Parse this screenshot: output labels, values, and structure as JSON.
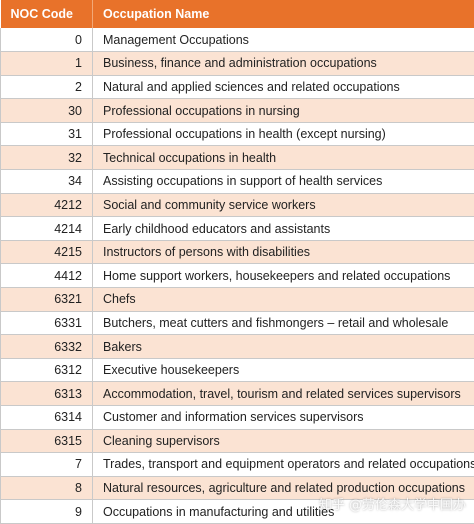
{
  "table": {
    "headers": {
      "code": "NOC Code",
      "name": "Occupation Name"
    },
    "rows": [
      {
        "code": "0",
        "name": "Management Occupations"
      },
      {
        "code": "1",
        "name": "Business, finance and administration occupations"
      },
      {
        "code": "2",
        "name": "Natural and applied sciences and related occupations"
      },
      {
        "code": "30",
        "name": "Professional occupations in nursing"
      },
      {
        "code": "31",
        "name": "Professional occupations in health (except nursing)"
      },
      {
        "code": "32",
        "name": "Technical occupations in health"
      },
      {
        "code": "34",
        "name": "Assisting occupations in support of health services"
      },
      {
        "code": "4212",
        "name": "Social and community service workers"
      },
      {
        "code": "4214",
        "name": "Early childhood educators and assistants"
      },
      {
        "code": "4215",
        "name": "Instructors of persons with disabilities"
      },
      {
        "code": "4412",
        "name": "Home support workers, housekeepers and related occupations"
      },
      {
        "code": "6321",
        "name": "Chefs"
      },
      {
        "code": "6331",
        "name": "Butchers, meat cutters and fishmongers – retail and wholesale"
      },
      {
        "code": "6332",
        "name": "Bakers"
      },
      {
        "code": "6312",
        "name": "Executive housekeepers"
      },
      {
        "code": "6313",
        "name": "Accommodation, travel, tourism and related services supervisors"
      },
      {
        "code": "6314",
        "name": "Customer and information services supervisors"
      },
      {
        "code": "6315",
        "name": "Cleaning supervisors"
      },
      {
        "code": "7",
        "name": "Trades, transport and equipment operators and related occupations"
      },
      {
        "code": "8",
        "name": "Natural resources, agriculture and related production occupations"
      },
      {
        "code": "9",
        "name": "Occupations in manufacturing and utilities"
      }
    ]
  },
  "watermark": "知乎 @劳伦森大学中国办",
  "colors": {
    "header_bg": "#e8722a",
    "stripe_bg": "#fbe3d3"
  }
}
